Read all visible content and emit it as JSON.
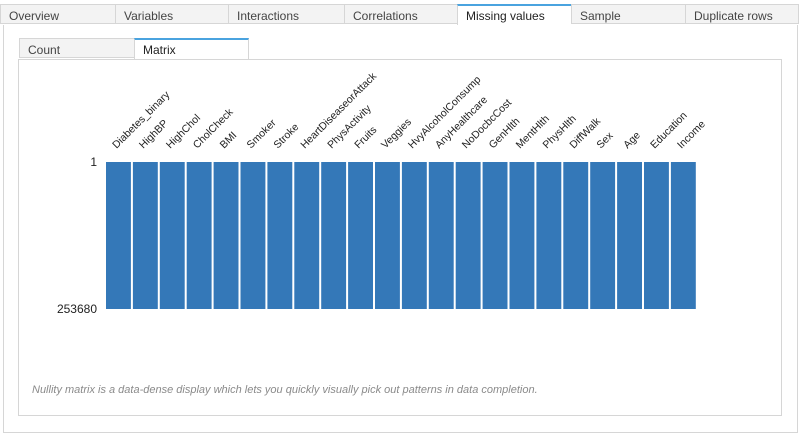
{
  "top_tabs": [
    {
      "label": "Overview",
      "active": false
    },
    {
      "label": "Variables",
      "active": false
    },
    {
      "label": "Interactions",
      "active": false
    },
    {
      "label": "Correlations",
      "active": false
    },
    {
      "label": "Missing values",
      "active": true
    },
    {
      "label": "Sample",
      "active": false
    },
    {
      "label": "Duplicate rows",
      "active": false
    }
  ],
  "sub_tabs": [
    {
      "label": "Count",
      "active": false
    },
    {
      "label": "Matrix",
      "active": true
    }
  ],
  "caption": "Nullity matrix is a data-dense display which lets you quickly visually pick out patterns in data completion.",
  "colors": {
    "bar": "#3478b8",
    "accent": "#4aa3df"
  },
  "chart_data": {
    "type": "heatmap",
    "title": "",
    "columns": [
      "Diabetes_binary",
      "HighBP",
      "HighChol",
      "CholCheck",
      "BMI",
      "Smoker",
      "Stroke",
      "HeartDiseaseorAttack",
      "PhysActivity",
      "Fruits",
      "Veggies",
      "HvyAlcoholConsump",
      "AnyHealthcare",
      "NoDocbcCost",
      "GenHlth",
      "MentHlth",
      "PhysHlth",
      "DiffWalk",
      "Sex",
      "Age",
      "Education",
      "Income"
    ],
    "row_range": [
      1,
      253680
    ],
    "row_labels": [
      "1",
      "253680"
    ],
    "missing_fraction": [
      0,
      0,
      0,
      0,
      0,
      0,
      0,
      0,
      0,
      0,
      0,
      0,
      0,
      0,
      0,
      0,
      0,
      0,
      0,
      0,
      0,
      0
    ]
  }
}
